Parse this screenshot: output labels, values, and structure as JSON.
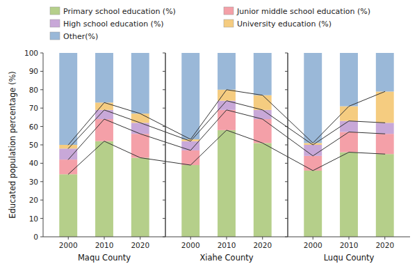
{
  "chart_data": [
    {
      "type": "bar",
      "stacked": true,
      "x_label": "Maqu County",
      "y_label": "Educated population percentage (%)",
      "categories": [
        "2000",
        "2010",
        "2020"
      ],
      "series": [
        {
          "name": "Primary school education (%)",
          "color": "#b5cf8a",
          "values": [
            34,
            52,
            43
          ]
        },
        {
          "name": "Junior middle school education (%)",
          "color": "#f4a0a8",
          "values": [
            8,
            12,
            13
          ]
        },
        {
          "name": "High school education (%)",
          "color": "#c8a8d8",
          "values": [
            6,
            5,
            6
          ]
        },
        {
          "name": "University education (%)",
          "color": "#f5cc80",
          "values": [
            2,
            4,
            5
          ]
        },
        {
          "name": "Other(%)",
          "color": "#9ab8d8",
          "values": [
            50,
            27,
            33
          ]
        }
      ],
      "ylim": [
        0,
        100
      ],
      "yticks": [
        0,
        10,
        20,
        30,
        40,
        50,
        60,
        70,
        80,
        90,
        100
      ],
      "grid": false,
      "legend": "top"
    },
    {
      "type": "bar",
      "stacked": true,
      "x_label": "Xiahe County",
      "categories": [
        "2000",
        "2010",
        "2020"
      ],
      "series": [
        {
          "name": "Primary school education (%)",
          "color": "#b5cf8a",
          "values": [
            39,
            58,
            51
          ]
        },
        {
          "name": "Junior middle school education (%)",
          "color": "#f4a0a8",
          "values": [
            8,
            11,
            13
          ]
        },
        {
          "name": "High school education (%)",
          "color": "#c8a8d8",
          "values": [
            5,
            5,
            5
          ]
        },
        {
          "name": "University education (%)",
          "color": "#f5cc80",
          "values": [
            1,
            6,
            8
          ]
        },
        {
          "name": "Other(%)",
          "color": "#9ab8d8",
          "values": [
            47,
            20,
            23
          ]
        }
      ],
      "ylim": [
        0,
        100
      ],
      "yticks": [
        0,
        10,
        20,
        30,
        40,
        50,
        60,
        70,
        80,
        90,
        100
      ],
      "grid": false,
      "tick_labels": "x"
    },
    {
      "type": "bar",
      "stacked": true,
      "x_label": "Luqu County",
      "categories": [
        "2000",
        "2010",
        "2020"
      ],
      "series": [
        {
          "name": "Primary school education (%)",
          "color": "#b5cf8a",
          "values": [
            36,
            46,
            45
          ]
        },
        {
          "name": "Junior middle school education (%)",
          "color": "#f4a0a8",
          "values": [
            8,
            11,
            11
          ]
        },
        {
          "name": "High school education (%)",
          "color": "#c8a8d8",
          "values": [
            6,
            6,
            6
          ]
        },
        {
          "name": "University education (%)",
          "color": "#f5cc80",
          "values": [
            1,
            8,
            17
          ]
        },
        {
          "name": "Other(%)",
          "color": "#9ab8d8",
          "values": [
            49,
            29,
            21
          ]
        }
      ],
      "ylim": [
        0,
        100
      ],
      "yticks": [
        0,
        10,
        20,
        30,
        40,
        50,
        60,
        70,
        80,
        90,
        100
      ],
      "grid": false,
      "tick_labels": "x"
    }
  ]
}
